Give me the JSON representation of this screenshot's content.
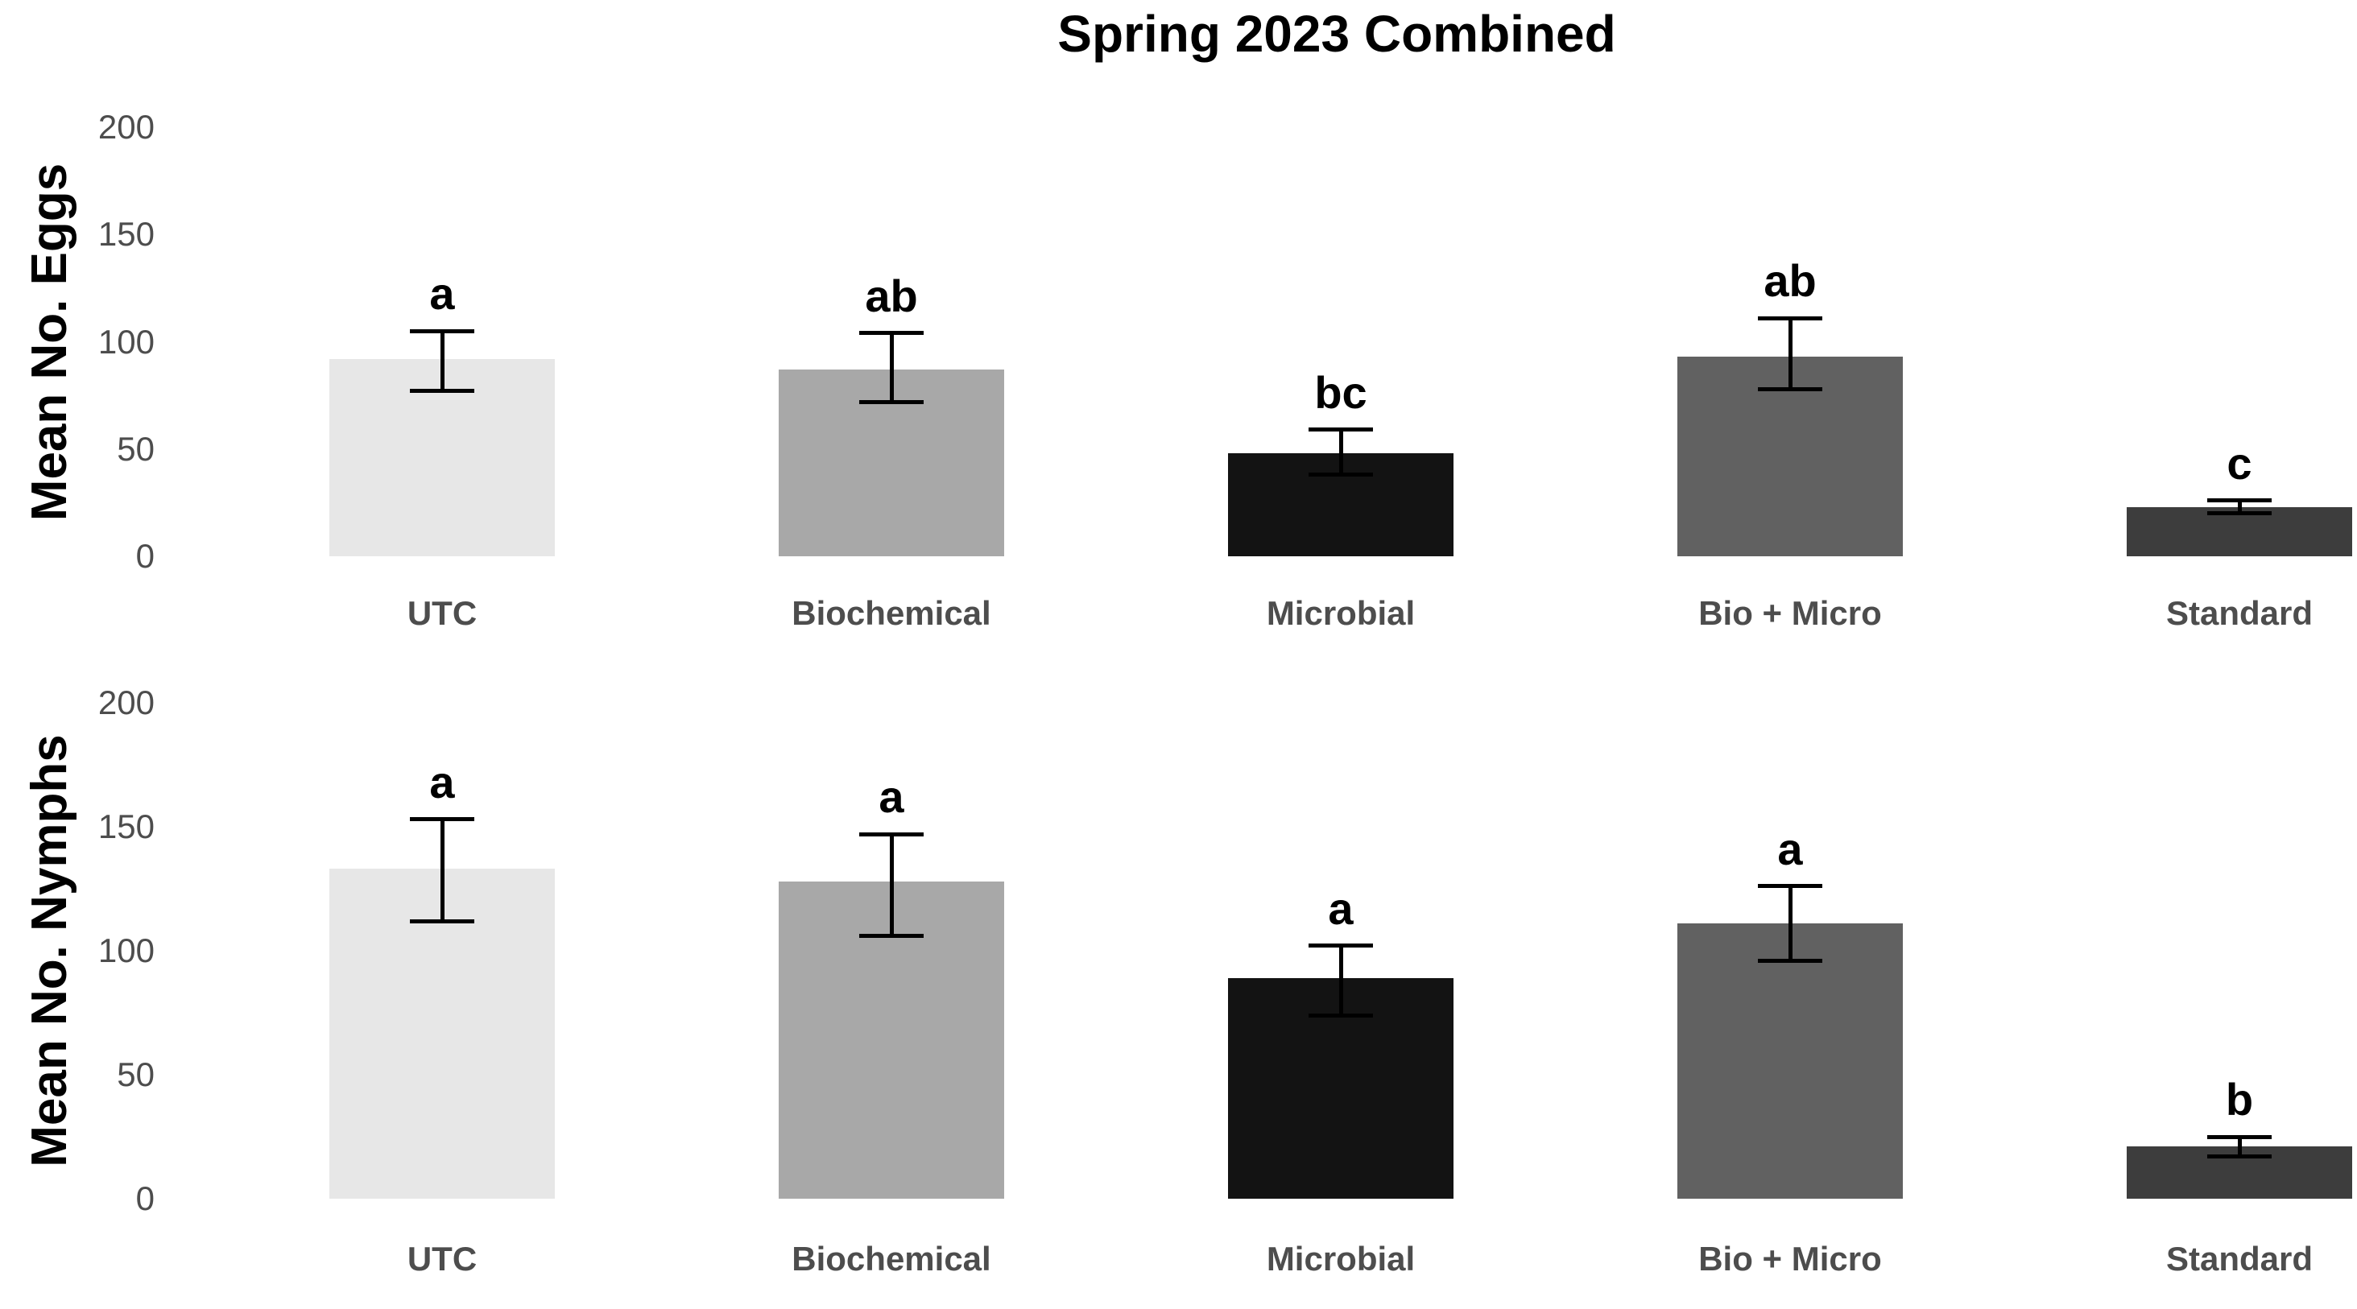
{
  "title": "Spring 2023 Combined",
  "colors": {
    "background": "#ffffff",
    "title_text": "#000000",
    "axis_label_text": "#000000",
    "tick_text": "#4d4d4d",
    "category_text": "#4d4d4d",
    "error_bar": "#000000",
    "sig_letter": "#000000"
  },
  "chart_data": [
    {
      "type": "bar",
      "panel": "eggs",
      "ylabel": "Mean No. Eggs",
      "categories": [
        "UTC",
        "Biochemical",
        "Microbial",
        "Bio + Micro",
        "Standard"
      ],
      "values": [
        92,
        87,
        48,
        93,
        23
      ],
      "error_low": [
        77,
        72,
        38,
        78,
        20
      ],
      "error_high": [
        105,
        104,
        59,
        111,
        26
      ],
      "sig_letters": [
        "a",
        "ab",
        "bc",
        "ab",
        "c"
      ],
      "bar_colors": [
        "#e7e7e7",
        "#a8a8a8",
        "#131313",
        "#616161",
        "#3d3d3d"
      ],
      "ylim": [
        0,
        200
      ],
      "yticks": [
        0,
        50,
        100,
        150,
        200
      ],
      "grid": false,
      "legend": "none"
    },
    {
      "type": "bar",
      "panel": "nymphs",
      "ylabel": "Mean No. Nymphs",
      "categories": [
        "UTC",
        "Biochemical",
        "Microbial",
        "Bio + Micro",
        "Standard"
      ],
      "values": [
        133,
        128,
        89,
        111,
        21
      ],
      "error_low": [
        112,
        106,
        74,
        96,
        17
      ],
      "error_high": [
        153,
        147,
        102,
        126,
        25
      ],
      "sig_letters": [
        "a",
        "a",
        "a",
        "a",
        "b"
      ],
      "bar_colors": [
        "#e7e7e7",
        "#a8a8a8",
        "#131313",
        "#616161",
        "#3d3d3d"
      ],
      "ylim": [
        0,
        200
      ],
      "yticks": [
        0,
        50,
        100,
        150,
        200
      ],
      "grid": false,
      "legend": "none"
    }
  ]
}
